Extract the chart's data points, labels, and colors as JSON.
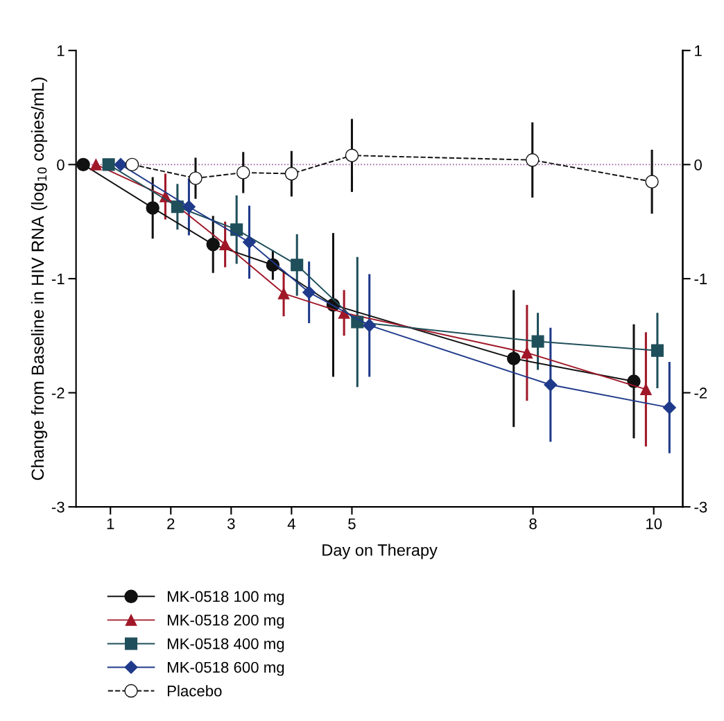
{
  "chart_data": {
    "type": "line",
    "xlabel": "Day on Therapy",
    "ylabel": "Change from Baseline in HIV RNA (log$_{10}$ copies/mL)",
    "xlim": [
      0.43,
      10.48
    ],
    "xticks": [
      1,
      2,
      3,
      4,
      5,
      8,
      10
    ],
    "ylim": [
      -3,
      1
    ],
    "yticks": [
      -3,
      -2,
      -1,
      0,
      1
    ],
    "y2lim": [
      -3,
      1
    ],
    "y2ticks": [
      -3,
      -2,
      -1,
      0,
      1
    ],
    "grid": false,
    "legend": "bottom",
    "ref_lines": [
      {
        "axis": "y",
        "value": 0,
        "color": "#9a5aa0",
        "line_style": "dotted"
      }
    ],
    "series": [
      {
        "name": "MK-0518 100 mg",
        "color": "#111111",
        "marker": "circle",
        "line_style": "solid",
        "x": [
          0.55,
          1.7,
          2.7,
          3.69,
          4.69,
          7.68,
          9.67
        ],
        "values": [
          0,
          -0.38,
          -0.7,
          -0.88,
          -1.23,
          -1.7,
          -1.9
        ],
        "errors": [
          null,
          0.27,
          0.25,
          0.13,
          0.63,
          0.6,
          0.5
        ]
      },
      {
        "name": "MK-0518 200 mg",
        "color": "#a01828",
        "marker": "triangle",
        "line_style": "solid",
        "x": [
          0.76,
          1.91,
          2.9,
          3.87,
          4.87,
          7.9,
          9.87
        ],
        "values": [
          0,
          -0.28,
          -0.7,
          -1.13,
          -1.3,
          -1.65,
          -1.97
        ],
        "errors": [
          null,
          0.2,
          0.2,
          0.2,
          0.2,
          0.42,
          0.5
        ]
      },
      {
        "name": "MK-0518 400 mg",
        "color": "#1f4f5a",
        "marker": "square",
        "line_style": "solid",
        "x": [
          0.97,
          2.11,
          3.09,
          4.09,
          5.09,
          8.08,
          10.06
        ],
        "values": [
          0,
          -0.37,
          -0.57,
          -0.88,
          -1.38,
          -1.55,
          -1.63
        ],
        "errors": [
          null,
          0.2,
          0.3,
          0.27,
          0.57,
          0.25,
          0.33
        ]
      },
      {
        "name": "MK-0518 600 mg",
        "color": "#1f3a8a",
        "marker": "diamond",
        "line_style": "solid",
        "x": [
          1.17,
          2.3,
          3.3,
          4.29,
          5.29,
          8.29,
          10.26
        ],
        "values": [
          0,
          -0.37,
          -0.68,
          -1.12,
          -1.41,
          -1.93,
          -2.13
        ],
        "errors": [
          null,
          0.25,
          0.32,
          0.27,
          0.45,
          0.5,
          0.4
        ]
      },
      {
        "name": "Placebo",
        "color": "#111111",
        "marker": "circle",
        "line_style": "dashed",
        "x": [
          1.36,
          2.41,
          3.2,
          4.0,
          5.0,
          7.99,
          9.97
        ],
        "values": [
          0,
          -0.12,
          -0.07,
          -0.08,
          0.08,
          0.04,
          -0.15
        ],
        "errors": [
          null,
          0.18,
          0.18,
          0.2,
          0.32,
          0.33,
          0.28
        ]
      }
    ]
  }
}
